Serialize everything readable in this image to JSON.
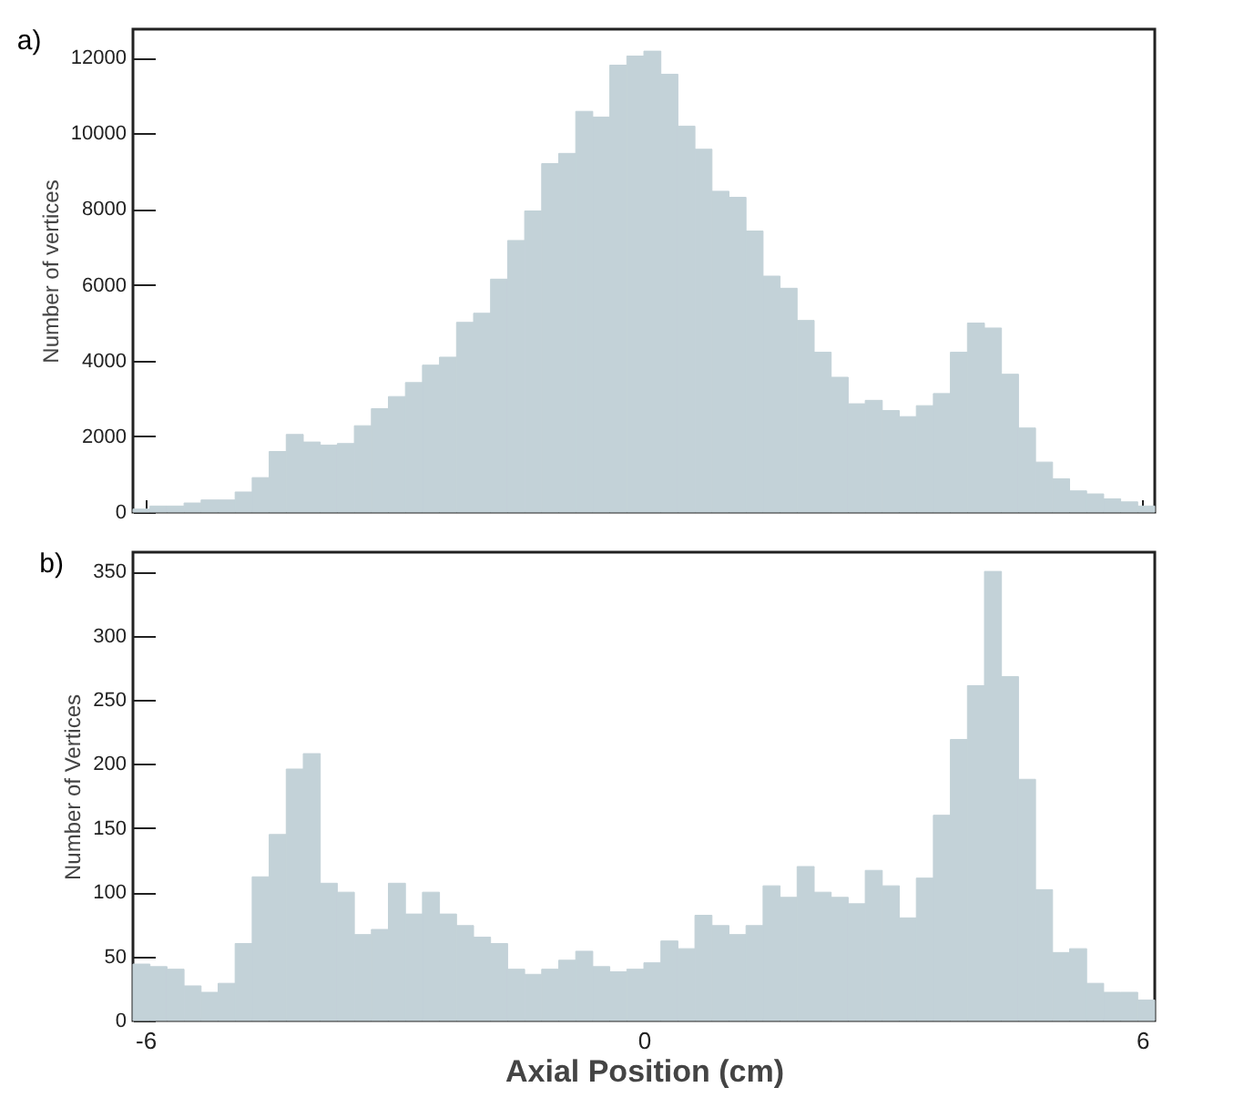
{
  "chart_data": [
    {
      "type": "histogram",
      "title": "a)",
      "ylabel": "Number of vertices",
      "color": "#c3d2d8",
      "bins": [
        -6.15,
        -5.945,
        -5.74,
        -5.535,
        -5.33,
        -5.125,
        -4.92,
        -4.715,
        -4.51,
        -4.305,
        -4.1,
        -3.895,
        -3.69,
        -3.485,
        -3.28,
        -3.075,
        -2.87,
        -2.665,
        -2.46,
        -2.255,
        -2.05,
        -1.845,
        -1.64,
        -1.435,
        -1.23,
        -1.025,
        -0.82,
        -0.615,
        -0.41,
        -0.205,
        0,
        0.205,
        0.41,
        0.615,
        0.82,
        1.025,
        1.23,
        1.435,
        1.64,
        1.845,
        2.05,
        2.255,
        2.46,
        2.665,
        2.87,
        3.075,
        3.28,
        3.485,
        3.69,
        3.895,
        4.1,
        4.305,
        4.51,
        4.715,
        4.92,
        5.125,
        5.33,
        5.535,
        5.74,
        5.945,
        6.15
      ],
      "values": [
        80,
        160,
        160,
        240,
        320,
        320,
        530,
        910,
        1600,
        2050,
        1850,
        1770,
        1810,
        2280,
        2730,
        3050,
        3420,
        3880,
        4090,
        5010,
        5250,
        6150,
        7170,
        7950,
        9200,
        9470,
        10580,
        10430,
        11800,
        12040,
        12170,
        11560,
        10190,
        9580,
        8470,
        8310,
        7420,
        6230,
        5910,
        5060,
        4220,
        3560,
        2860,
        2950,
        2680,
        2520,
        2810,
        3130,
        4220,
        4990,
        4860,
        3640,
        2220,
        1320,
        880,
        560,
        480,
        350,
        270,
        160
      ],
      "xlim": [
        -6.15,
        6.15
      ],
      "ylim": [
        0,
        12750
      ],
      "xticks": [
        {
          "value": -6,
          "label": null
        },
        {
          "value": -4,
          "label": null
        },
        {
          "value": -2,
          "label": null
        },
        {
          "value": 0,
          "label": null
        },
        {
          "value": 2,
          "label": null
        },
        {
          "value": 4,
          "label": null
        },
        {
          "value": 6,
          "label": null
        }
      ],
      "yticks": [
        0,
        2000,
        4000,
        6000,
        8000,
        10000,
        12000
      ],
      "tick_labels": "y"
    },
    {
      "type": "histogram",
      "title": "b)",
      "xlabel": "Axial Position (cm)",
      "ylabel": "Number of Vertices",
      "color": "#c3d2d8",
      "bins": [
        -6.15,
        -5.945,
        -5.74,
        -5.535,
        -5.33,
        -5.125,
        -4.92,
        -4.715,
        -4.51,
        -4.305,
        -4.1,
        -3.895,
        -3.69,
        -3.485,
        -3.28,
        -3.075,
        -2.87,
        -2.665,
        -2.46,
        -2.255,
        -2.05,
        -1.845,
        -1.64,
        -1.435,
        -1.23,
        -1.025,
        -0.82,
        -0.615,
        -0.41,
        -0.205,
        0,
        0.205,
        0.41,
        0.615,
        0.82,
        1.025,
        1.23,
        1.435,
        1.64,
        1.845,
        2.05,
        2.255,
        2.46,
        2.665,
        2.87,
        3.075,
        3.28,
        3.485,
        3.69,
        3.895,
        4.1,
        4.305,
        4.51,
        4.715,
        4.92,
        5.125,
        5.33,
        5.535,
        5.74,
        5.945,
        6.15
      ],
      "values": [
        44,
        42,
        40,
        27,
        22,
        29,
        60,
        112,
        145,
        196,
        208,
        107,
        100,
        67,
        71,
        107,
        83,
        100,
        83,
        74,
        65,
        60,
        40,
        36,
        40,
        47,
        54,
        42,
        38,
        40,
        45,
        62,
        56,
        82,
        74,
        67,
        74,
        105,
        96,
        120,
        100,
        96,
        91,
        117,
        105,
        80,
        111,
        160,
        219,
        261,
        350,
        268,
        188,
        102,
        53,
        56,
        29,
        22,
        22,
        16
      ],
      "xlim": [
        -6.15,
        6.15
      ],
      "ylim": [
        0,
        365
      ],
      "xticks": [
        -6,
        {
          "value": -4,
          "label": null
        },
        {
          "value": -2,
          "label": null
        },
        0,
        {
          "value": 2,
          "label": null
        },
        {
          "value": 4,
          "label": null
        },
        6
      ],
      "yticks": [
        0,
        50,
        100,
        150,
        200,
        250,
        300,
        350
      ]
    }
  ]
}
